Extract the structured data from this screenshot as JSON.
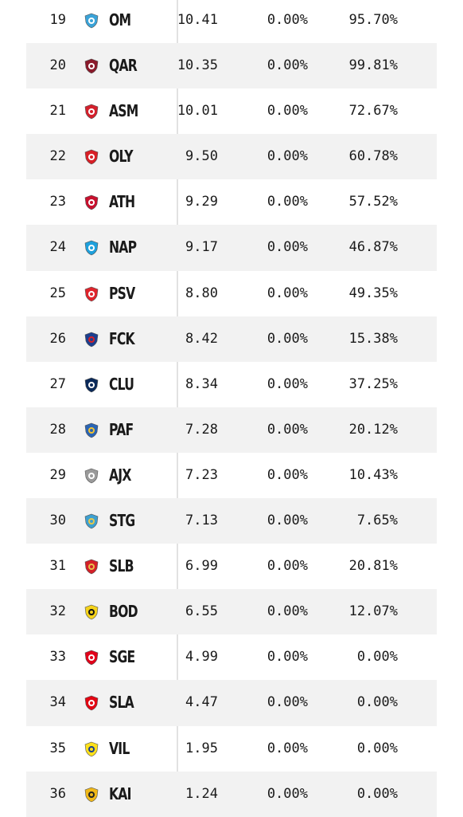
{
  "rows": [
    {
      "rank": "19",
      "team": "OM",
      "logo": "om-crest-icon",
      "value1": "10.41",
      "value2": "0.00%",
      "value3": "95.70%",
      "c1": "#3aa3d8",
      "c2": "#ffffff"
    },
    {
      "rank": "20",
      "team": "QAR",
      "logo": "qar-crest-icon",
      "value1": "10.35",
      "value2": "0.00%",
      "value3": "99.81%",
      "c1": "#8a1a2b",
      "c2": "#ffffff"
    },
    {
      "rank": "21",
      "team": "ASM",
      "logo": "asm-crest-icon",
      "value1": "10.01",
      "value2": "0.00%",
      "value3": "72.67%",
      "c1": "#d4202c",
      "c2": "#ffffff"
    },
    {
      "rank": "22",
      "team": "OLY",
      "logo": "oly-crest-icon",
      "value1": "9.50",
      "value2": "0.00%",
      "value3": "60.78%",
      "c1": "#d81f26",
      "c2": "#ffffff"
    },
    {
      "rank": "23",
      "team": "ATH",
      "logo": "ath-crest-icon",
      "value1": "9.29",
      "value2": "0.00%",
      "value3": "57.52%",
      "c1": "#c8102e",
      "c2": "#ffffff"
    },
    {
      "rank": "24",
      "team": "NAP",
      "logo": "nap-crest-icon",
      "value1": "9.17",
      "value2": "0.00%",
      "value3": "46.87%",
      "c1": "#1ea0dc",
      "c2": "#ffffff"
    },
    {
      "rank": "25",
      "team": "PSV",
      "logo": "psv-crest-icon",
      "value1": "8.80",
      "value2": "0.00%",
      "value3": "49.35%",
      "c1": "#e0242c",
      "c2": "#ffffff"
    },
    {
      "rank": "26",
      "team": "FCK",
      "logo": "fck-crest-icon",
      "value1": "8.42",
      "value2": "0.00%",
      "value3": "15.38%",
      "c1": "#1b3f8f",
      "c2": "#d62027"
    },
    {
      "rank": "27",
      "team": "CLU",
      "logo": "clu-crest-icon",
      "value1": "8.34",
      "value2": "0.00%",
      "value3": "37.25%",
      "c1": "#0a2a5a",
      "c2": "#ffffff"
    },
    {
      "rank": "28",
      "team": "PAF",
      "logo": "paf-crest-icon",
      "value1": "7.28",
      "value2": "0.00%",
      "value3": "20.12%",
      "c1": "#2a64b4",
      "c2": "#f2c230"
    },
    {
      "rank": "29",
      "team": "AJX",
      "logo": "ajx-crest-icon",
      "value1": "7.23",
      "value2": "0.00%",
      "value3": "10.43%",
      "c1": "#9a9a9a",
      "c2": "#ffffff"
    },
    {
      "rank": "30",
      "team": "STG",
      "logo": "stg-crest-icon",
      "value1": "7.13",
      "value2": "0.00%",
      "value3": "7.65%",
      "c1": "#3ea0d0",
      "c2": "#e8c84a"
    },
    {
      "rank": "31",
      "team": "SLB",
      "logo": "slb-crest-icon",
      "value1": "6.99",
      "value2": "0.00%",
      "value3": "20.81%",
      "c1": "#d42028",
      "c2": "#e8c04a"
    },
    {
      "rank": "32",
      "team": "BOD",
      "logo": "bod-crest-icon",
      "value1": "6.55",
      "value2": "0.00%",
      "value3": "12.07%",
      "c1": "#f4d21a",
      "c2": "#111111"
    },
    {
      "rank": "33",
      "team": "SGE",
      "logo": "sge-crest-icon",
      "value1": "4.99",
      "value2": "0.00%",
      "value3": "0.00%",
      "c1": "#e1001a",
      "c2": "#ffffff"
    },
    {
      "rank": "34",
      "team": "SLA",
      "logo": "sla-crest-icon",
      "value1": "4.47",
      "value2": "0.00%",
      "value3": "0.00%",
      "c1": "#e30613",
      "c2": "#ffffff"
    },
    {
      "rank": "35",
      "team": "VIL",
      "logo": "vil-crest-icon",
      "value1": "1.95",
      "value2": "0.00%",
      "value3": "0.00%",
      "c1": "#ffe11b",
      "c2": "#1b3f8f"
    },
    {
      "rank": "36",
      "team": "KAI",
      "logo": "kai-crest-icon",
      "value1": "1.24",
      "value2": "0.00%",
      "value3": "0.00%",
      "c1": "#f0b818",
      "c2": "#222222"
    }
  ]
}
